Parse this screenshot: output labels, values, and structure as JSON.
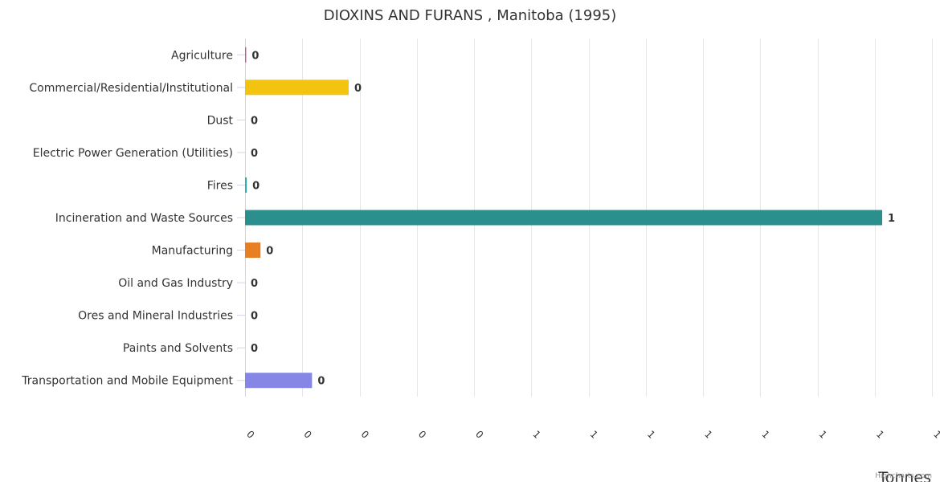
{
  "chart_data": {
    "type": "bar",
    "orientation": "horizontal",
    "title": "DIOXINS AND FURANS , Manitoba (1995)",
    "xlabel": "Tonnes",
    "categories": [
      "Agriculture",
      "Commercial/Residential/Institutional",
      "Dust",
      "Electric Power Generation (Utilities)",
      "Fires",
      "Incineration and Waste Sources",
      "Manufacturing",
      "Oil and Gas Industry",
      "Ores and Mineral Industries",
      "Paints and Solvents",
      "Transportation and Mobile Equipment"
    ],
    "values": [
      0.002,
      0.181,
      0,
      0,
      0.003,
      1.113,
      0.027,
      0,
      0,
      0,
      0.117
    ],
    "data_labels": [
      "0",
      "0",
      "0",
      "0",
      "0",
      "1",
      "0",
      "0",
      "0",
      "0",
      "0"
    ],
    "colors": [
      "#d1568f",
      "#f2c40f",
      "#cccccc",
      "#cccccc",
      "#2ab0a8",
      "#2b8f8e",
      "#e97f23",
      "#cccccc",
      "#cccccc",
      "#cccccc",
      "#8686e6"
    ],
    "xlim": [
      0,
      1.2
    ],
    "x_ticks": [
      0,
      0.1,
      0.2,
      0.3,
      0.4,
      0.5,
      0.6,
      0.7,
      0.8,
      0.9,
      1.0,
      1.1,
      1.2
    ],
    "x_tick_labels": [
      "0",
      "0",
      "0",
      "0",
      "0",
      "1",
      "1",
      "1",
      "1",
      "1",
      "1",
      "1",
      "1"
    ],
    "grid": true,
    "legend": "none"
  },
  "credits": "Highcharts.com"
}
